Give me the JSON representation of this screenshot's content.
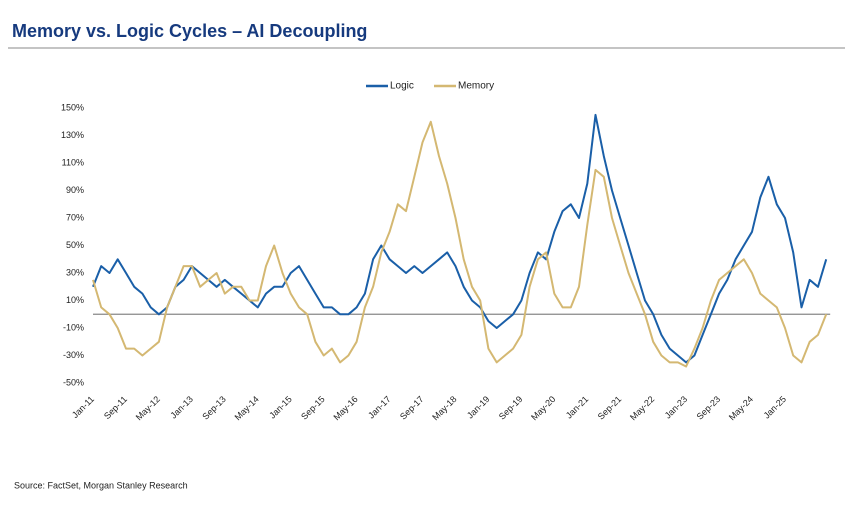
{
  "chart_data": {
    "type": "line",
    "title": "Memory vs. Logic Cycles – AI Decoupling",
    "source": "Source: FactSet, Morgan Stanley Research",
    "categories": [
      "Jan-11",
      null,
      null,
      null,
      "Sep-11",
      null,
      null,
      null,
      "May-12",
      null,
      null,
      null,
      "Jan-13",
      null,
      null,
      null,
      "Sep-13",
      null,
      null,
      null,
      "May-14",
      null,
      null,
      null,
      "Jan-15",
      null,
      null,
      null,
      "Sep-15",
      null,
      null,
      null,
      "May-16",
      null,
      null,
      null,
      "Jan-17",
      null,
      null,
      null,
      "Sep-17",
      null,
      null,
      null,
      "May-18",
      null,
      null,
      null,
      "Jan-19",
      null,
      null,
      null,
      "Sep-19",
      null,
      null,
      null,
      "May-20",
      null,
      null,
      null,
      "Jan-21",
      null,
      null,
      null,
      "Sep-21",
      null,
      null,
      null,
      "May-22",
      null,
      null,
      null,
      "Jan-23",
      null,
      null,
      null,
      "Sep-23",
      null,
      null,
      null,
      "May-24",
      null,
      null,
      null,
      "Jan-25",
      null,
      null,
      null,
      null,
      null
    ],
    "series": [
      {
        "name": "Logic",
        "color": "#1a5fa8",
        "values": [
          20,
          35,
          30,
          40,
          30,
          20,
          15,
          5,
          0,
          5,
          20,
          25,
          35,
          30,
          25,
          20,
          25,
          20,
          15,
          10,
          5,
          15,
          20,
          20,
          30,
          35,
          25,
          15,
          5,
          5,
          0,
          0,
          5,
          15,
          40,
          50,
          40,
          35,
          30,
          35,
          30,
          35,
          40,
          45,
          35,
          20,
          10,
          5,
          -5,
          -10,
          -5,
          0,
          10,
          30,
          45,
          40,
          60,
          75,
          80,
          70,
          95,
          145,
          115,
          90,
          70,
          50,
          30,
          10,
          0,
          -15,
          -25,
          -30,
          -35,
          -30,
          -15,
          0,
          15,
          25,
          40,
          50,
          60,
          85,
          100,
          80,
          70,
          45,
          5,
          25,
          20,
          40
        ]
      },
      {
        "name": "Memory",
        "color": "#d4b872",
        "values": [
          25,
          5,
          0,
          -10,
          -25,
          -25,
          -30,
          -25,
          -20,
          5,
          20,
          35,
          35,
          20,
          25,
          30,
          15,
          20,
          20,
          10,
          10,
          35,
          50,
          30,
          15,
          5,
          0,
          -20,
          -30,
          -25,
          -35,
          -30,
          -20,
          5,
          20,
          45,
          60,
          80,
          75,
          100,
          125,
          140,
          115,
          95,
          70,
          40,
          20,
          10,
          -25,
          -35,
          -30,
          -25,
          -15,
          20,
          40,
          45,
          15,
          5,
          5,
          20,
          65,
          105,
          100,
          70,
          50,
          30,
          15,
          0,
          -20,
          -30,
          -35,
          -35,
          -38,
          -25,
          -10,
          10,
          25,
          30,
          35,
          40,
          30,
          15,
          10,
          5,
          -10,
          -30,
          -35,
          -20,
          -15,
          0
        ]
      }
    ],
    "ylim": [
      -50,
      150
    ],
    "yticks": [
      {
        "value": -50,
        "label": "-50%"
      },
      {
        "value": -30,
        "label": "-30%"
      },
      {
        "value": -10,
        "label": "-10%"
      },
      {
        "value": 10,
        "label": "10%"
      },
      {
        "value": 30,
        "label": "30%"
      },
      {
        "value": 50,
        "label": "50%"
      },
      {
        "value": 70,
        "label": "70%"
      },
      {
        "value": 90,
        "label": "90%"
      },
      {
        "value": 110,
        "label": "110%"
      },
      {
        "value": 130,
        "label": "130%"
      },
      {
        "value": 150,
        "label": "150%"
      }
    ],
    "legend": "top"
  }
}
